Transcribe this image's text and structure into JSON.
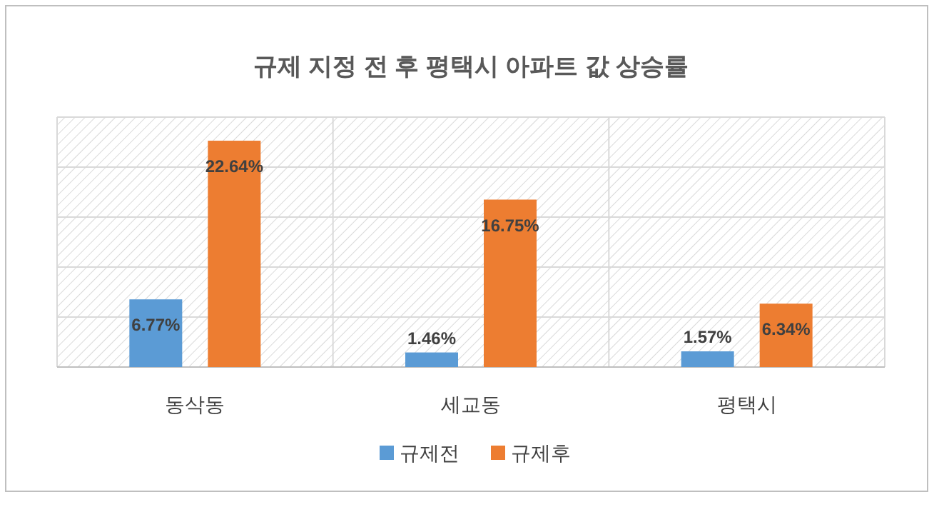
{
  "chart_data": {
    "type": "bar",
    "title": "규제 지정 전 후 평택시 아파트 값 상승률",
    "categories": [
      "동삭동",
      "세교동",
      "평택시"
    ],
    "series": [
      {
        "name": "규제전",
        "color": "#5b9bd5",
        "values": [
          6.77,
          1.46,
          1.57
        ],
        "value_labels": [
          "6.77%",
          "1.46%",
          "1.57%"
        ]
      },
      {
        "name": "규제후",
        "color": "#ed7d31",
        "values": [
          22.64,
          16.75,
          6.34
        ],
        "value_labels": [
          "22.64%",
          "16.75%",
          "6.34%"
        ]
      }
    ],
    "ylim": [
      0,
      25
    ],
    "yticks": [
      {
        "value": 0,
        "label": null
      },
      {
        "value": 5,
        "label": null
      },
      {
        "value": 10,
        "label": null
      },
      {
        "value": 15,
        "label": null
      },
      {
        "value": 20,
        "label": null
      },
      {
        "value": 25,
        "label": null
      }
    ],
    "tick_labels": "x",
    "grid": true,
    "legend": "bottom"
  }
}
